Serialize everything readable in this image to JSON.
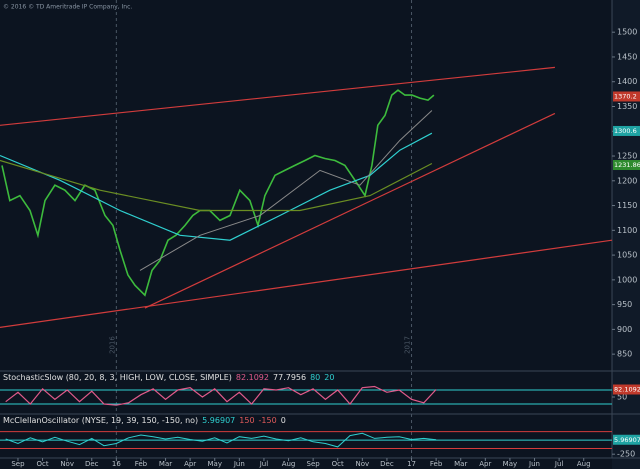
{
  "copyright": "© 2016 © TD Ameritrade IP Company, Inc.",
  "chart_data": [
    {
      "type": "line",
      "xlim": [
        -0.73,
        24.15
      ],
      "ylim": [
        818,
        1565
      ],
      "yticks": [
        850,
        900,
        950,
        1000,
        1050,
        1100,
        1150,
        1200,
        1250,
        1300,
        1350,
        1400,
        1450,
        1500
      ],
      "xticks": [
        {
          "value": 0,
          "label": "Sep"
        },
        {
          "value": 1,
          "label": "Oct"
        },
        {
          "value": 2,
          "label": "Nov"
        },
        {
          "value": 3,
          "label": "Dec"
        },
        {
          "value": 4,
          "label": "16"
        },
        {
          "value": 5,
          "label": "Feb"
        },
        {
          "value": 6,
          "label": "Mar"
        },
        {
          "value": 7,
          "label": "Apr"
        },
        {
          "value": 8,
          "label": "May"
        },
        {
          "value": 9,
          "label": "Jun"
        },
        {
          "value": 10,
          "label": "Jul"
        },
        {
          "value": 11,
          "label": "Aug"
        },
        {
          "value": 12,
          "label": "Sep"
        },
        {
          "value": 13,
          "label": "Oct"
        },
        {
          "value": 14,
          "label": "Nov"
        },
        {
          "value": 15,
          "label": "Dec"
        },
        {
          "value": 16,
          "label": "17"
        },
        {
          "value": 17,
          "label": "Feb"
        },
        {
          "value": 18,
          "label": "Mar"
        },
        {
          "value": 19,
          "label": "Apr"
        },
        {
          "value": 20,
          "label": "May"
        },
        {
          "value": 21,
          "label": "Jun"
        },
        {
          "value": 22,
          "label": "Jul"
        },
        {
          "value": 23,
          "label": "Aug"
        }
      ],
      "year_lines": [
        {
          "value": 4,
          "label": "2016"
        },
        {
          "value": 16,
          "label": "2017"
        }
      ],
      "series": [
        {
          "color": "#3dbb3d",
          "width": 1.6,
          "x": [
            -0.65,
            -0.33,
            0.08,
            0.49,
            0.81,
            1.1,
            1.5,
            1.91,
            2.32,
            2.72,
            3.13,
            3.54,
            3.86,
            4.15,
            4.47,
            4.76,
            5.16,
            5.45,
            5.77,
            6.1,
            6.42,
            6.79,
            7.11,
            7.4,
            7.8,
            8.21,
            8.62,
            9.02,
            9.43,
            9.76,
            10.04,
            10.45,
            10.85,
            11.26,
            11.67,
            12.07,
            12.48,
            12.89,
            13.29,
            13.7,
            14.11,
            14.39,
            14.63,
            14.92,
            15.2,
            15.45,
            15.73,
            16.02,
            16.34,
            16.67,
            16.91
          ],
          "values": [
            1231,
            1160,
            1170,
            1140,
            1090,
            1160,
            1191,
            1181,
            1160,
            1191,
            1181,
            1130,
            1110,
            1060,
            1010,
            989,
            969,
            1019,
            1039,
            1080,
            1090,
            1110,
            1130,
            1140,
            1140,
            1120,
            1130,
            1181,
            1160,
            1110,
            1170,
            1211,
            1221,
            1231,
            1241,
            1251,
            1245,
            1241,
            1231,
            1201,
            1170,
            1231,
            1312,
            1332,
            1373,
            1383,
            1373,
            1373,
            1367,
            1363,
            1373
          ]
        },
        {
          "color": "#2fd0d0",
          "width": 1.2,
          "x": [
            -0.73,
            1.71,
            4.15,
            6.59,
            8.62,
            10.65,
            12.68,
            14.31,
            15.53,
            16.83
          ],
          "values": [
            1251,
            1201,
            1140,
            1090,
            1080,
            1130,
            1181,
            1211,
            1262,
            1296
          ]
        },
        {
          "color": "#6b8e23",
          "width": 1.2,
          "x": [
            -0.73,
            3.33,
            7.4,
            11.46,
            14.31,
            16.83
          ],
          "values": [
            1241,
            1181,
            1140,
            1140,
            1170,
            1235
          ]
        },
        {
          "color": "#8a8a8a",
          "width": 1,
          "x": [
            4.96,
            7.4,
            9.84,
            12.28,
            13.9,
            15.53,
            16.83
          ],
          "values": [
            1019,
            1090,
            1130,
            1221,
            1191,
            1282,
            1342
          ]
        }
      ],
      "trendlines": [
        {
          "color": "#d23c3c",
          "x": [
            -0.73,
            21.83
          ],
          "values": [
            1312,
            1429
          ]
        },
        {
          "color": "#d23c3c",
          "x": [
            -0.73,
            24.15
          ],
          "values": [
            904,
            1080
          ]
        },
        {
          "color": "#d23c3c",
          "x": [
            5.16,
            21.83
          ],
          "values": [
            943,
            1336
          ]
        }
      ],
      "price_tags": [
        {
          "value": 1370.2,
          "label": "1370.2",
          "color": "#c0392b"
        },
        {
          "value": 1300.6,
          "label": "1300.6",
          "color": "#1fa3a3"
        },
        {
          "value": 1231.86,
          "label": "1231.86",
          "color": "#2e8b2e"
        }
      ]
    },
    {
      "type": "line",
      "header": [
        {
          "text": "StochasticSlow (80, 20, 8, 3, HIGH, LOW, CLOSE, SIMPLE)",
          "color": "#e0e0e0"
        },
        {
          "text": "82.1092",
          "color": "#e05a8a"
        },
        {
          "text": "77.7956",
          "color": "#e0e0e0"
        },
        {
          "text": "80",
          "color": "#2fd0d0"
        },
        {
          "text": "20",
          "color": "#2fd0d0"
        }
      ],
      "xlim": [
        -0.73,
        24.15
      ],
      "ylim": [
        -10,
        110
      ],
      "yticks": [
        50
      ],
      "levels": [
        {
          "value": 80,
          "color": "#2fd0d0"
        },
        {
          "value": 20,
          "color": "#2fd0d0"
        }
      ],
      "x": [
        -0.5,
        0,
        0.5,
        1,
        1.5,
        2,
        2.5,
        3,
        3.5,
        4,
        4.5,
        5,
        5.5,
        6,
        6.5,
        7,
        7.5,
        8,
        8.5,
        9,
        9.5,
        10,
        10.5,
        11,
        11.5,
        12,
        12.5,
        13,
        13.5,
        14,
        14.5,
        15,
        15.5,
        16,
        16.5,
        17
      ],
      "series": [
        {
          "color": "#e05a8a",
          "width": 1.2,
          "values": [
            30,
            70,
            20,
            85,
            40,
            80,
            30,
            75,
            20,
            15,
            25,
            60,
            85,
            40,
            80,
            90,
            50,
            85,
            30,
            70,
            20,
            85,
            80,
            90,
            60,
            85,
            40,
            80,
            20,
            90,
            95,
            70,
            80,
            40,
            25,
            82.1
          ]
        }
      ],
      "price_tags": [
        {
          "value": 82.1092,
          "label": "82.1092",
          "color": "#c0392b"
        }
      ]
    },
    {
      "type": "line",
      "header": [
        {
          "text": "McClellanOscillator (NYSE, 19, 39, 150, -150, no)",
          "color": "#e0e0e0"
        },
        {
          "text": "5.96907",
          "color": "#2fd0d0"
        },
        {
          "text": "150",
          "color": "#e05a5a"
        },
        {
          "text": "-150",
          "color": "#e05a5a"
        },
        {
          "text": "0",
          "color": "#e0e0e0"
        }
      ],
      "xlim": [
        -0.73,
        24.15
      ],
      "ylim": [
        -300,
        250
      ],
      "yticks": [
        -250
      ],
      "levels": [
        {
          "value": 150,
          "color": "#d23c3c"
        },
        {
          "value": -150,
          "color": "#d23c3c"
        },
        {
          "value": 0,
          "color": "#2fd0d0"
        }
      ],
      "x": [
        -0.5,
        0,
        0.5,
        1,
        1.5,
        2,
        2.5,
        3,
        3.5,
        4,
        4.5,
        5,
        5.5,
        6,
        6.5,
        7,
        7.5,
        8,
        8.5,
        9,
        9.5,
        10,
        10.5,
        11,
        11.5,
        12,
        12.5,
        13,
        13.5,
        14,
        14.5,
        15,
        15.5,
        16,
        16.5,
        17
      ],
      "series": [
        {
          "color": "#2fd0d0",
          "width": 1,
          "values": [
            20,
            -60,
            40,
            -30,
            50,
            -20,
            -80,
            30,
            -100,
            -60,
            40,
            90,
            60,
            20,
            50,
            10,
            -20,
            40,
            -50,
            60,
            30,
            70,
            20,
            -10,
            40,
            -30,
            -60,
            -120,
            80,
            120,
            30,
            50,
            60,
            10,
            30,
            5.97
          ]
        }
      ],
      "price_tags": [
        {
          "value": 5.96907,
          "label": "5.96907",
          "color": "#1fa3a3"
        }
      ]
    }
  ]
}
